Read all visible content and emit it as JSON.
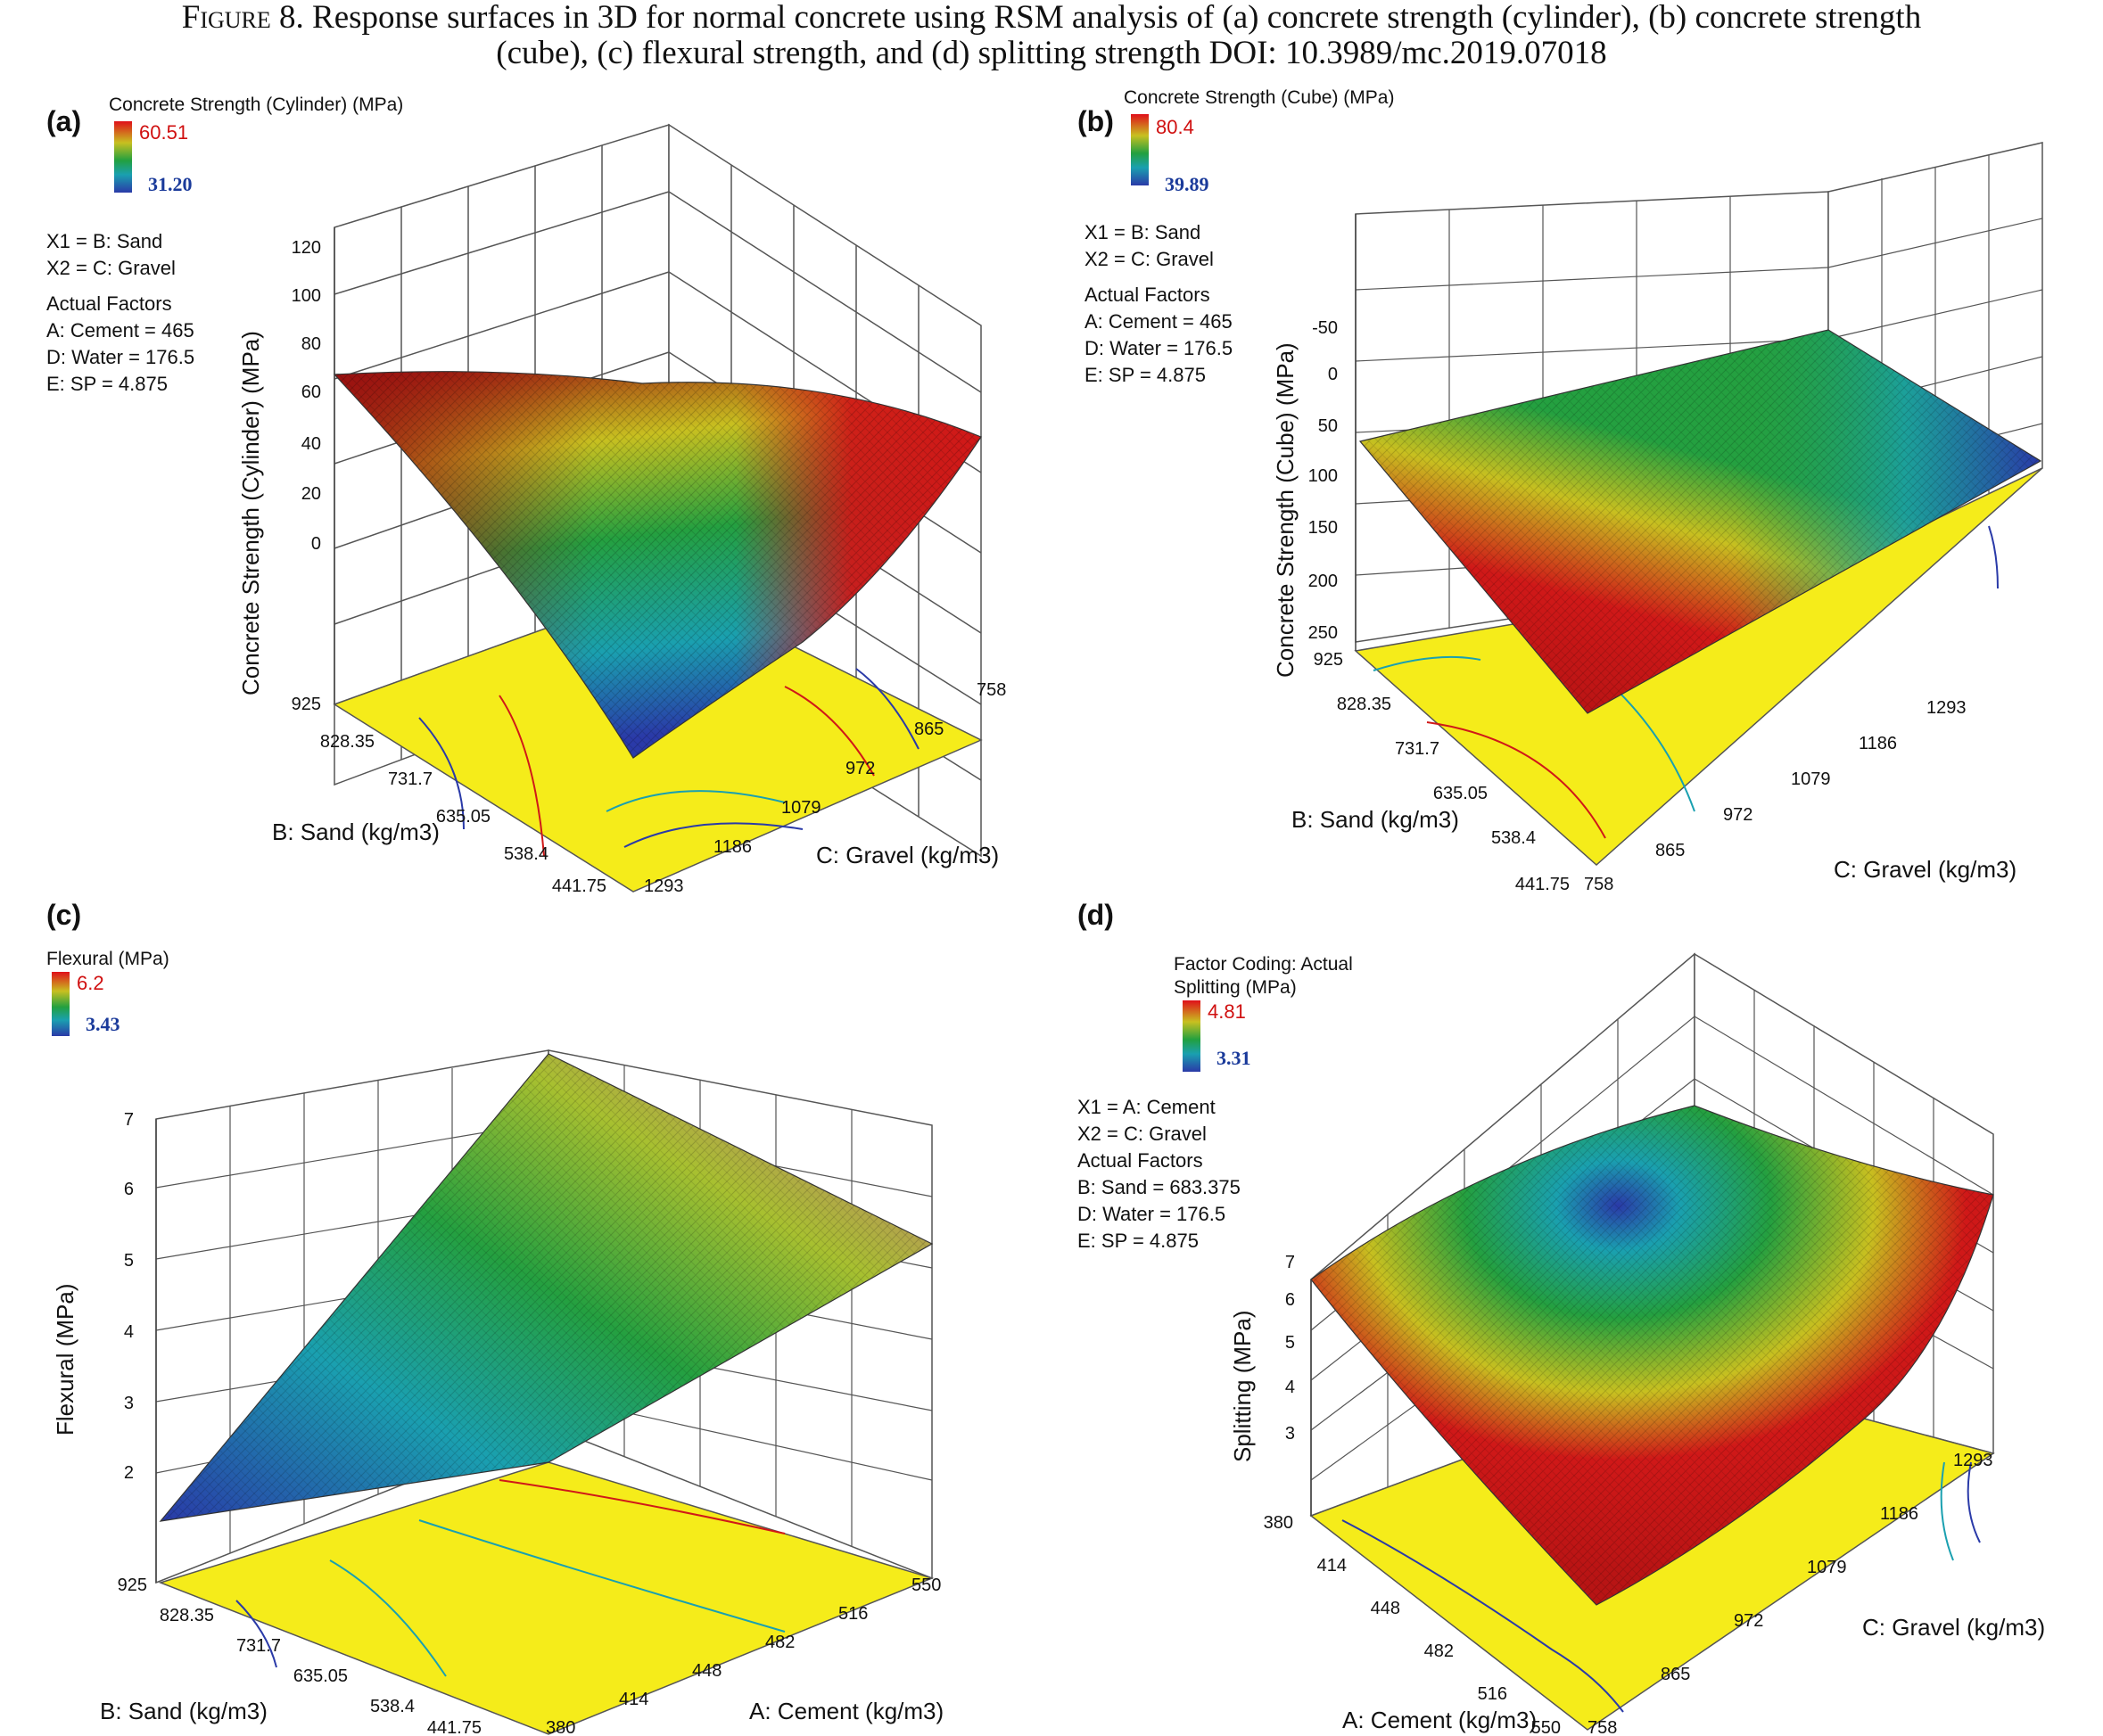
{
  "caption": {
    "figure_label": "Figure 8.",
    "line1": "Response surfaces in 3D for normal concrete using RSM analysis of (a) concrete strength (cylinder), (b) concrete strength",
    "line2": "(cube), (c) flexural strength, and (d) splitting strength DOI: 10.3989/mc.2019.07018"
  },
  "panels": {
    "a": {
      "label": "(a)",
      "legend_title": "Concrete Strength (Cylinder) (MPa)",
      "legend_max": "60.51",
      "legend_min": "31.20",
      "x_vars": [
        "X1 = B: Sand",
        "X2 = C: Gravel"
      ],
      "actual_factors_title": "Actual Factors",
      "actual_factors": [
        "A: Cement  = 465",
        "D: Water = 176.5",
        "E: SP = 4.875"
      ],
      "z_title": "Concrete Strength (Cylinder) (MPa)",
      "z_ticks": [
        "120",
        "100",
        "80",
        "60",
        "40",
        "20",
        "0"
      ],
      "left_axis_title": "B: Sand (kg/m3)",
      "left_axis_ticks": [
        "925",
        "828.35",
        "731.7",
        "635.05",
        "538.4",
        "441.75"
      ],
      "right_axis_title": "C: Gravel (kg/m3)",
      "right_axis_ticks": [
        "1293",
        "1186",
        "1079",
        "972",
        "865",
        "758"
      ]
    },
    "b": {
      "label": "(b)",
      "legend_title": "Concrete Strength (Cube)  (MPa)",
      "legend_max": "80.4",
      "legend_min": "39.89",
      "x_vars": [
        "X1 = B: Sand",
        "X2 = C: Gravel"
      ],
      "actual_factors_title": "Actual Factors",
      "actual_factors": [
        "A: Cement  = 465",
        "D: Water = 176.5",
        "E: SP = 4.875"
      ],
      "z_title": "Concrete Strength (Cube)  (MPa)",
      "z_ticks": [
        "-50",
        "0",
        "50",
        "100",
        "150",
        "200",
        "250"
      ],
      "left_axis_title": "B: Sand (kg/m3)",
      "left_axis_ticks": [
        "925",
        "828.35",
        "731.7",
        "635.05",
        "538.4",
        "441.75"
      ],
      "right_axis_title": "C: Gravel (kg/m3)",
      "right_axis_ticks": [
        "758",
        "865",
        "972",
        "1079",
        "1186",
        "1293"
      ]
    },
    "c": {
      "label": "(c)",
      "legend_title": "Flexural  (MPa)",
      "legend_max": "6.2",
      "legend_min": "3.43",
      "z_title": "Flexural  (MPa)",
      "z_ticks": [
        "7",
        "6",
        "5",
        "4",
        "3",
        "2"
      ],
      "left_axis_title": "B: Sand (kg/m3)",
      "left_axis_ticks": [
        "925",
        "828.35",
        "731.7",
        "635.05",
        "538.4",
        "441.75"
      ],
      "right_axis_title": "A: Cement  (kg/m3)",
      "right_axis_ticks": [
        "380",
        "414",
        "448",
        "482",
        "516",
        "550"
      ]
    },
    "d": {
      "label": "(d)",
      "legend_header": "Factor Coding: Actual",
      "legend_title": "Splitting (MPa)",
      "legend_max": "4.81",
      "legend_min": "3.31",
      "x_vars": [
        "X1 = A: Cement",
        "X2 = C: Gravel"
      ],
      "actual_factors_title": "Actual Factors",
      "actual_factors": [
        "B: Sand = 683.375",
        "D: Water = 176.5",
        "E: SP = 4.875"
      ],
      "z_title": "Splitting (MPa)",
      "z_ticks": [
        "7",
        "6",
        "5",
        "4",
        "3"
      ],
      "left_axis_title": "A: Cement  (kg/m3)",
      "left_axis_ticks": [
        "380",
        "414",
        "448",
        "482",
        "516",
        "550"
      ],
      "right_axis_title": "C: Gravel (kg/m3)",
      "right_axis_ticks": [
        "758",
        "865",
        "972",
        "1079",
        "1186",
        "1293"
      ]
    }
  },
  "colors": {
    "floor": "#f5ec1a",
    "high": "#d01818",
    "mid": "#24a040",
    "low": "#2a3aa8",
    "grid": "#555555"
  }
}
